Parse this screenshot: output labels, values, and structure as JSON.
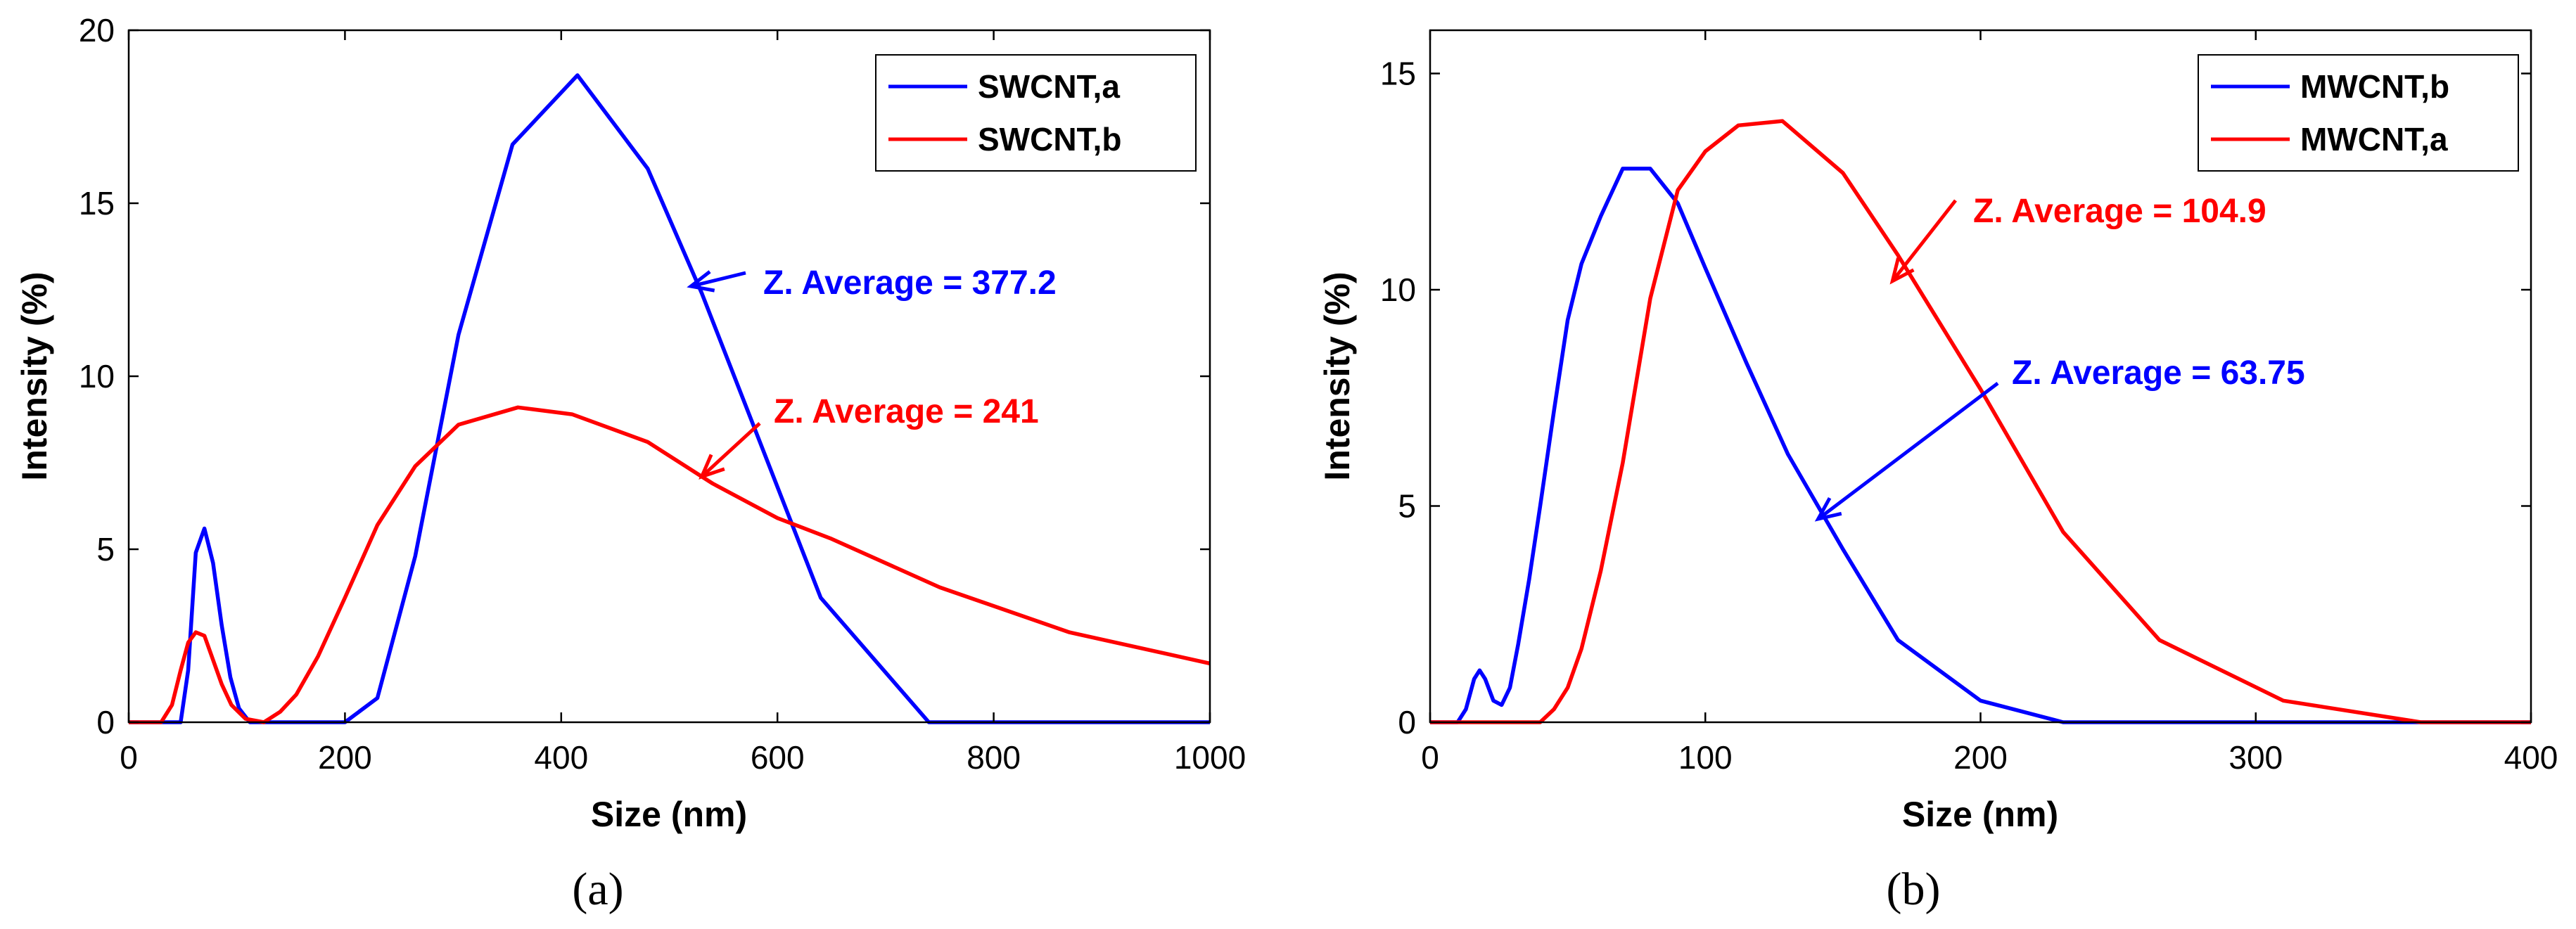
{
  "chart_data": [
    {
      "type": "line",
      "caption": "(a)",
      "xlabel": "Size (nm)",
      "ylabel": "Intensity (%)",
      "xlim": [
        0,
        1000
      ],
      "ylim": [
        0,
        20
      ],
      "xticks": [
        0,
        200,
        400,
        600,
        800,
        1000
      ],
      "yticks": [
        0,
        5,
        10,
        15,
        20
      ],
      "grid": false,
      "legend_position": "top-right",
      "series": [
        {
          "name": "SWCNT,a",
          "color": "#0000ff",
          "x": [
            0,
            40,
            48,
            55,
            62,
            70,
            78,
            86,
            94,
            102,
            112,
            125,
            200,
            230,
            265,
            305,
            355,
            415,
            480,
            530,
            575,
            640,
            740,
            1000
          ],
          "y": [
            0,
            0,
            0,
            1.5,
            4.9,
            5.6,
            4.6,
            2.8,
            1.3,
            0.4,
            0,
            0,
            0,
            0.7,
            4.8,
            11.2,
            16.7,
            18.7,
            16.0,
            12.4,
            8.8,
            3.6,
            0,
            0
          ]
        },
        {
          "name": "SWCNT,b",
          "color": "#ff0000",
          "x": [
            0,
            30,
            40,
            48,
            55,
            62,
            70,
            78,
            86,
            95,
            108,
            125,
            140,
            155,
            175,
            200,
            230,
            265,
            305,
            360,
            410,
            480,
            540,
            600,
            650,
            750,
            870,
            1000
          ],
          "y": [
            0,
            0,
            0.5,
            1.5,
            2.3,
            2.6,
            2.5,
            1.8,
            1.1,
            0.5,
            0.1,
            0,
            0.3,
            0.8,
            1.9,
            3.6,
            5.7,
            7.4,
            8.6,
            9.1,
            8.9,
            8.1,
            6.9,
            5.9,
            5.3,
            3.9,
            2.6,
            1.7
          ]
        }
      ],
      "annotations": [
        {
          "text": "Z. Average = 377.2",
          "color": "#0000ff",
          "arrow_to": [
            520,
            12.6
          ]
        },
        {
          "text": "Z. Average = 241",
          "color": "#ff0000",
          "arrow_to": [
            530,
            7.1
          ]
        }
      ]
    },
    {
      "type": "line",
      "caption": "(b)",
      "xlabel": "Size (nm)",
      "ylabel": "Intensity (%)",
      "xlim": [
        0,
        400
      ],
      "ylim": [
        0,
        16
      ],
      "xticks": [
        0,
        100,
        200,
        300,
        400
      ],
      "yticks": [
        0,
        5,
        10,
        15
      ],
      "grid": false,
      "legend_position": "top-right",
      "series": [
        {
          "name": "MWCNT,b",
          "color": "#0000ff",
          "x": [
            0,
            10,
            13,
            16,
            18,
            20,
            23,
            26,
            29,
            32,
            36,
            40,
            45,
            50,
            55,
            62,
            70,
            80,
            90,
            100,
            115,
            130,
            150,
            170,
            200,
            230,
            260,
            300,
            400
          ],
          "y": [
            0,
            0,
            0.3,
            1.0,
            1.2,
            1.0,
            0.5,
            0.4,
            0.8,
            1.8,
            3.3,
            5.0,
            7.2,
            9.3,
            10.6,
            11.7,
            12.8,
            12.8,
            12.0,
            10.5,
            8.3,
            6.2,
            4.0,
            1.9,
            0.5,
            0,
            0,
            0,
            0
          ]
        },
        {
          "name": "MWCNT,a",
          "color": "#ff0000",
          "x": [
            0,
            25,
            40,
            45,
            50,
            55,
            62,
            70,
            80,
            90,
            100,
            112,
            128,
            150,
            170,
            200,
            230,
            265,
            310,
            360,
            400
          ],
          "y": [
            0,
            0,
            0,
            0.3,
            0.8,
            1.7,
            3.5,
            6.0,
            9.8,
            12.3,
            13.2,
            13.8,
            13.9,
            12.7,
            10.8,
            7.7,
            4.4,
            1.9,
            0.5,
            0,
            0
          ]
        }
      ],
      "annotations": [
        {
          "text": "Z. Average = 104.9",
          "color": "#ff0000",
          "arrow_to": [
            168,
            10.2
          ]
        },
        {
          "text": "Z. Average = 63.75",
          "color": "#0000ff",
          "arrow_to": [
            141,
            4.7
          ]
        }
      ]
    }
  ]
}
